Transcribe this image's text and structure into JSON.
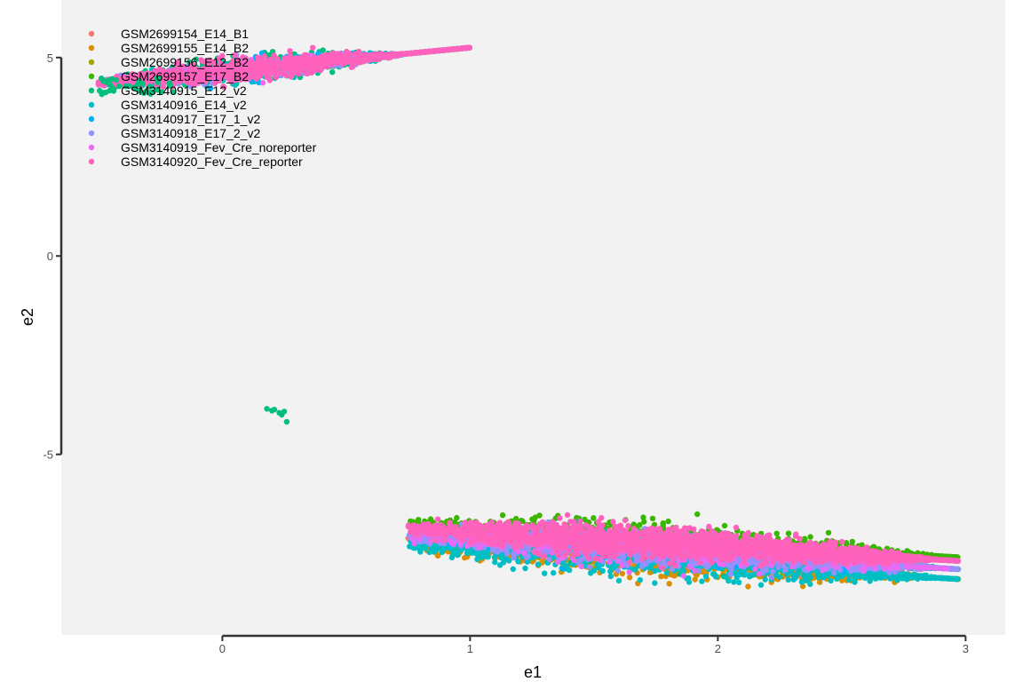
{
  "chart_data": {
    "type": "scatter",
    "xlabel": "e1",
    "ylabel": "e2",
    "xlim": [
      -0.65,
      3.16
    ],
    "ylim": [
      -9.55,
      6.45
    ],
    "x_ticks": [
      0,
      1,
      2,
      3
    ],
    "x_tick_labels": [
      "0",
      "1",
      "2",
      "3"
    ],
    "y_ticks": [
      -5,
      0,
      5
    ],
    "y_tick_labels": [
      "-5",
      "0",
      "5"
    ],
    "grid": false,
    "legend_position": "top-left",
    "background": "#f2f2f2",
    "series": [
      {
        "name": "GSM2699154_E14_B1",
        "color": "#F8766D"
      },
      {
        "name": "GSM2699155_E14_B2",
        "color": "#D89000"
      },
      {
        "name": "GSM2699156_E12_B2",
        "color": "#A3A500"
      },
      {
        "name": "GSM2699157_E17_B2",
        "color": "#39B600"
      },
      {
        "name": "GSM3140915_E12_v2",
        "color": "#00BF7D"
      },
      {
        "name": "GSM3140916_E14_v2",
        "color": "#00BFC4"
      },
      {
        "name": "GSM3140917_E17_1_v2",
        "color": "#00B0F6"
      },
      {
        "name": "GSM3140918_E17_2_v2",
        "color": "#9590FF"
      },
      {
        "name": "GSM3140919_Fev_Cre_noreporter",
        "color": "#E76BF3"
      },
      {
        "name": "GSM3140920_Fev_Cre_reporter",
        "color": "#FF62BC"
      }
    ],
    "clusters": [
      {
        "name": "upper",
        "center": [
          0.45,
          4.9
        ],
        "x_range": [
          -0.5,
          1.0
        ],
        "y_range": [
          4.1,
          5.8
        ],
        "dominant_series": [
          "GSM3140915_E12_v2",
          "GSM3140920_Fev_Cre_reporter"
        ]
      },
      {
        "name": "isolated",
        "center": [
          0.22,
          -3.95
        ],
        "x_range": [
          0.17,
          0.26
        ],
        "y_range": [
          -4.2,
          -3.85
        ],
        "dominant_series": [
          "GSM3140915_E12_v2"
        ]
      },
      {
        "name": "lower",
        "center": [
          1.9,
          -7.5
        ],
        "x_range": [
          0.72,
          2.98
        ],
        "y_range": [
          -8.85,
          -6.2
        ],
        "dominant_series": [
          "GSM3140920_Fev_Cre_reporter",
          "GSM3140918_E17_2_v2",
          "GSM2699157_E17_B2",
          "GSM3140916_E14_v2"
        ]
      }
    ]
  }
}
